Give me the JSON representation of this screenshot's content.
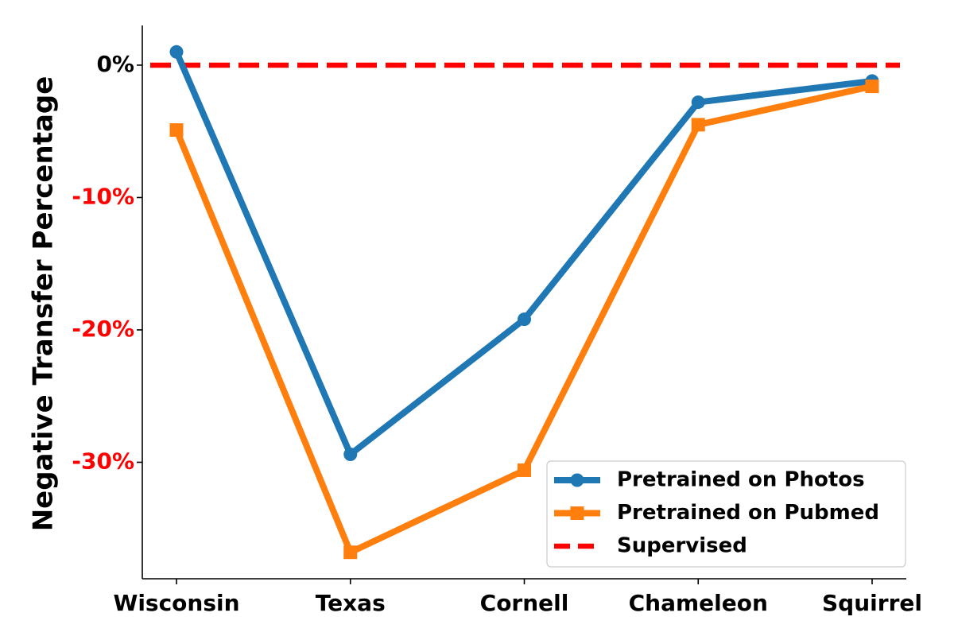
{
  "chart_data": {
    "type": "line",
    "title": "",
    "xlabel": "",
    "ylabel": "Negative Transfer Percentage",
    "categories": [
      "Wisconsin",
      "Texas",
      "Cornell",
      "Chameleon",
      "Squirrel"
    ],
    "ylim": [
      -38.8,
      3.0
    ],
    "yticks": [
      0,
      -10,
      -20,
      -30
    ],
    "ytick_labels": [
      "0%",
      "-10%",
      "-20%",
      "-30%"
    ],
    "ytick_colors": [
      "#000000",
      "#ff0000",
      "#ff0000",
      "#ff0000"
    ],
    "series": [
      {
        "name": "Pretrained on Photos",
        "values": [
          1.0,
          -29.4,
          -19.2,
          -2.8,
          -1.2
        ],
        "color": "#1f77b4",
        "marker": "circle"
      },
      {
        "name": "Pretrained on Pubmed",
        "values": [
          -4.9,
          -36.8,
          -30.6,
          -4.5,
          -1.6
        ],
        "color": "#ff7f0e",
        "marker": "square"
      }
    ],
    "reference_line": {
      "name": "Supervised",
      "value": 0,
      "color": "#ff0000",
      "style": "dashed"
    },
    "grid": false,
    "legend_position": "lower-right"
  }
}
